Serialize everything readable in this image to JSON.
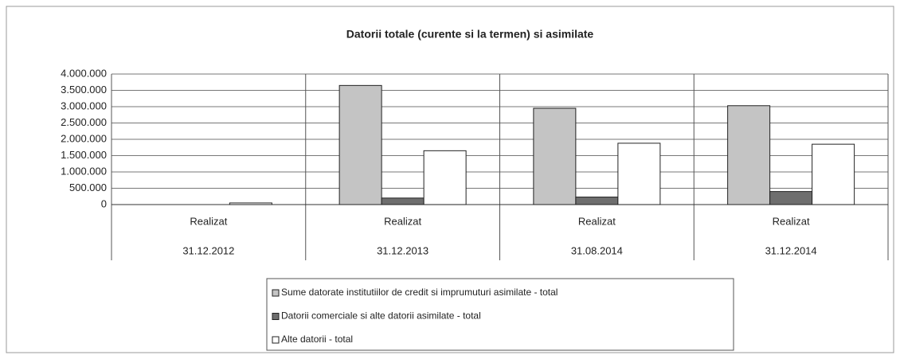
{
  "chart_data": {
    "type": "bar",
    "title": "Datorii totale (curente si la termen) si asimilate",
    "categories": [
      {
        "label": "Realizat",
        "date": "31.12.2012"
      },
      {
        "label": "Realizat",
        "date": "31.12.2013"
      },
      {
        "label": "Realizat",
        "date": "31.08.2014"
      },
      {
        "label": "Realizat",
        "date": "31.12.2014"
      }
    ],
    "series": [
      {
        "name": "Sume datorate institutiilor de credit si imprumuturi asimilate - total",
        "color": "#c4c4c4",
        "values": [
          0,
          3650000,
          2950000,
          3030000
        ]
      },
      {
        "name": "Datorii comerciale si alte datorii asimilate - total",
        "color": "#6e6e6e",
        "values": [
          0,
          200000,
          230000,
          400000
        ]
      },
      {
        "name": "Alte datorii - total",
        "color": "#ffffff",
        "values": [
          50000,
          1650000,
          1880000,
          1850000
        ]
      }
    ],
    "ylim": [
      0,
      4000000
    ],
    "yticks": [
      0,
      {
        "value": 500000,
        "label": "500.000"
      },
      {
        "value": 1000000,
        "label": "1.000.000"
      },
      {
        "value": 1500000,
        "label": "1.500.000"
      },
      {
        "value": 2000000,
        "label": "2.000.000"
      },
      {
        "value": 2500000,
        "label": "2.500.000"
      },
      {
        "value": 3000000,
        "label": "3.000.000"
      },
      {
        "value": 3500000,
        "label": "3.500.000"
      },
      {
        "value": 4000000,
        "label": "4.000.000"
      }
    ],
    "grid": true,
    "legend": "bottom"
  }
}
